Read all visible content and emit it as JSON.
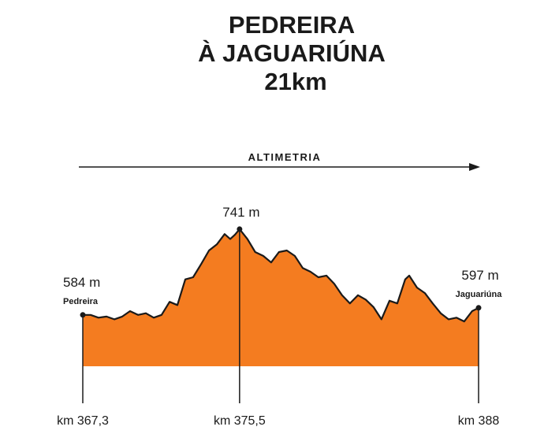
{
  "chart_data": {
    "type": "area",
    "title_lines": [
      "PEDREIRA",
      "À JAGUARIÚNA",
      "21km"
    ],
    "subtitle": "ALTIMETRIA",
    "color": "#f47c20",
    "line_color": "#1a1a1a",
    "x": [
      367.3,
      367.71,
      368.12,
      368.54,
      368.95,
      369.36,
      369.77,
      370.19,
      370.6,
      371.01,
      371.42,
      371.84,
      372.25,
      372.66,
      373.07,
      373.49,
      373.9,
      374.31,
      374.72,
      375.01,
      375.26,
      375.5,
      375.91,
      376.32,
      376.74,
      377.15,
      377.56,
      377.97,
      378.39,
      378.8,
      379.21,
      379.62,
      380.04,
      380.45,
      380.86,
      381.27,
      381.69,
      382.1,
      382.51,
      382.92,
      383.34,
      383.75,
      384.16,
      384.37,
      384.78,
      385.19,
      385.6,
      386.02,
      386.43,
      386.84,
      387.25,
      387.66,
      388
    ],
    "values": [
      584,
      584,
      579,
      581,
      576,
      581,
      591,
      584,
      587,
      579,
      584,
      608,
      602,
      649,
      653,
      677,
      702,
      713,
      732,
      723,
      731,
      741,
      723,
      699,
      692,
      680,
      699,
      702,
      692,
      670,
      663,
      653,
      656,
      641,
      620,
      605,
      620,
      612,
      598,
      576,
      610,
      605,
      649,
      656,
      634,
      624,
      605,
      587,
      576,
      579,
      572,
      591,
      597
    ],
    "xlim": [
      367.3,
      388
    ],
    "ylim": [
      490,
      800
    ],
    "xticks": [
      {
        "value": 367.3,
        "label": "km 367,3"
      },
      {
        "value": 375.5,
        "label": "km 375,5"
      },
      {
        "value": 388,
        "label": "km 388"
      }
    ],
    "markers": [
      {
        "x": 367.3,
        "value": 584,
        "value_label": "584 m",
        "name": "Pedreira"
      },
      {
        "x": 375.5,
        "value": 741,
        "value_label": "741 m"
      },
      {
        "x": 388,
        "value": 597,
        "value_label": "597 m",
        "name": "Jaguariúna"
      }
    ]
  }
}
